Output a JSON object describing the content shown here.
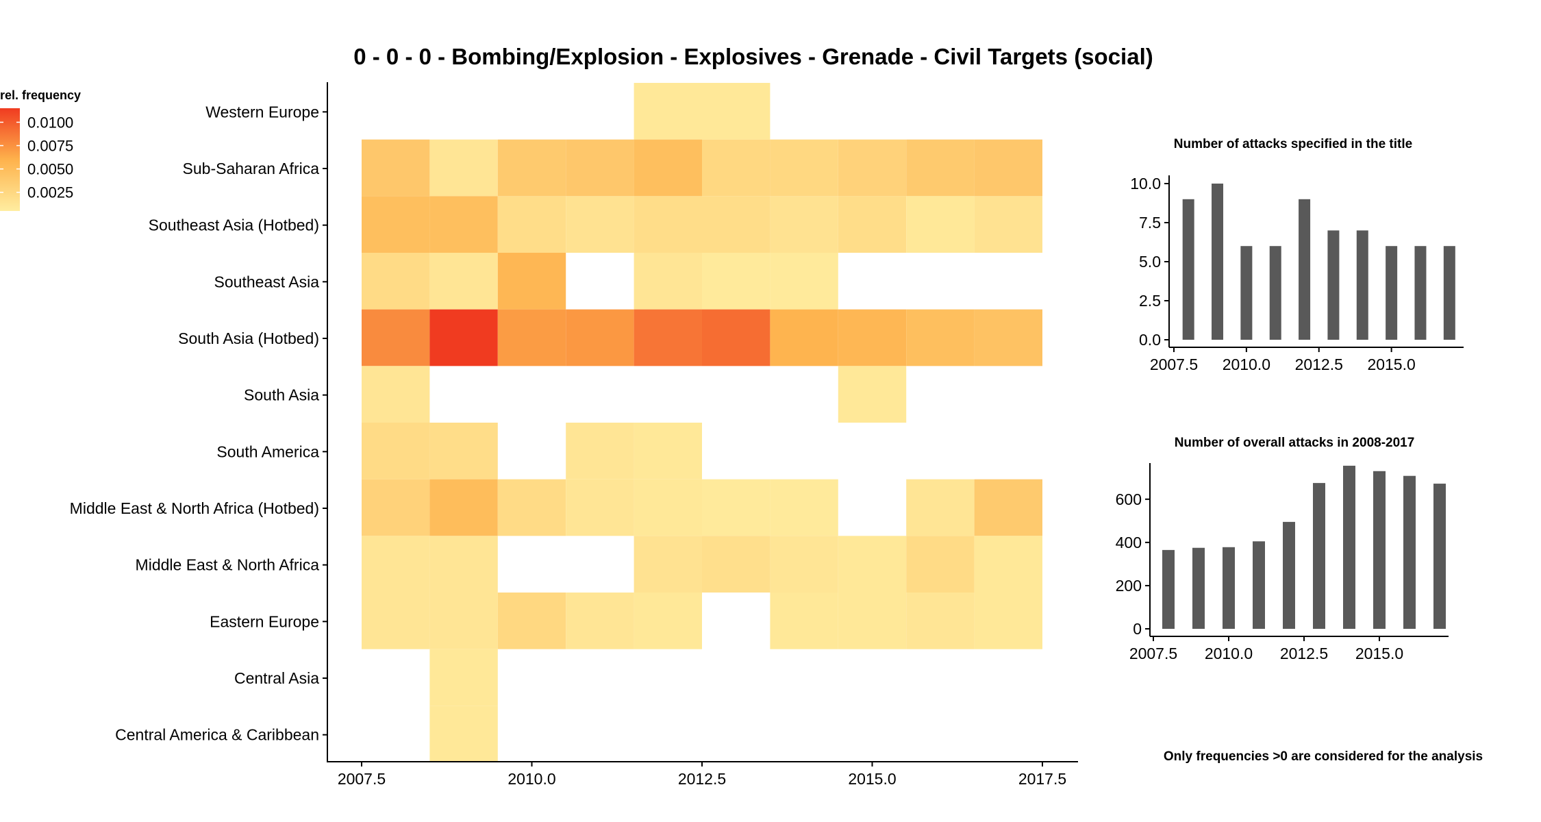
{
  "chart_data": [
    {
      "type": "heatmap",
      "title": "0 - 0 - 0 - Bombing/Explosion - Explosives - Grenade - Civil Targets (social)",
      "xlabel": "",
      "ylabel": "",
      "x_ticks": [
        "2007.5",
        "2010.0",
        "2012.5",
        "2015.0",
        "2017.5"
      ],
      "xlim": [
        2007.5,
        2017.5
      ],
      "x": [
        2008,
        2009,
        2010,
        2011,
        2012,
        2013,
        2014,
        2015,
        2016,
        2017
      ],
      "categories": [
        "Western Europe",
        "Sub-Saharan Africa",
        "Southeast Asia (Hotbed)",
        "Southeast Asia",
        "South Asia (Hotbed)",
        "South Asia",
        "South America",
        "Middle East & North Africa (Hotbed)",
        "Middle East & North Africa",
        "Eastern Europe",
        "Central Asia",
        "Central America & Caribbean"
      ],
      "legend": {
        "title": "rel. frequency",
        "ticks": [
          "0.0100",
          "0.0075",
          "0.0050",
          "0.0025"
        ],
        "tick_values": [
          0.01,
          0.0075,
          0.005,
          0.0025
        ],
        "range": [
          0.0005,
          0.0115
        ],
        "color_low": "#ffeda0",
        "color_mid": "#feb24c",
        "color_high": "#f03b20",
        "placement": "left"
      },
      "values": [
        [
          null,
          null,
          null,
          null,
          0.001,
          0.001,
          null,
          null,
          null,
          null
        ],
        [
          0.004,
          0.0012,
          0.0038,
          0.004,
          0.0048,
          0.0025,
          0.0025,
          0.003,
          0.0038,
          0.004
        ],
        [
          0.0048,
          0.0048,
          0.002,
          0.0015,
          0.002,
          0.002,
          0.0015,
          0.002,
          0.001,
          0.0015
        ],
        [
          0.0022,
          0.0012,
          0.0055,
          null,
          0.0012,
          0.0008,
          0.0008,
          null,
          null,
          null
        ],
        [
          0.0078,
          0.0115,
          0.007,
          0.0072,
          0.0088,
          0.0092,
          0.0058,
          0.0055,
          0.0048,
          0.0045
        ],
        [
          0.0012,
          null,
          null,
          null,
          null,
          null,
          null,
          0.001,
          null,
          null
        ],
        [
          0.0022,
          0.002,
          null,
          0.0012,
          0.001,
          null,
          null,
          null,
          null,
          null
        ],
        [
          0.003,
          0.005,
          0.0022,
          0.0012,
          0.001,
          0.0008,
          0.0008,
          null,
          0.0012,
          0.0038
        ],
        [
          0.0012,
          0.0012,
          null,
          null,
          0.0015,
          0.0018,
          0.0012,
          0.001,
          0.0022,
          0.001
        ],
        [
          0.0012,
          0.0012,
          0.0025,
          0.0012,
          0.001,
          null,
          0.001,
          0.001,
          0.0012,
          0.001
        ],
        [
          null,
          0.001,
          null,
          null,
          null,
          null,
          null,
          null,
          null,
          null
        ],
        [
          null,
          0.001,
          null,
          null,
          null,
          null,
          null,
          null,
          null,
          null
        ]
      ],
      "grid": false,
      "background": "#ffffff"
    },
    {
      "type": "bar",
      "title": "Number of attacks specified in the title",
      "x": [
        2008,
        2009,
        2010,
        2011,
        2012,
        2013,
        2014,
        2015,
        2016,
        2017
      ],
      "values": [
        9,
        10,
        6,
        6,
        9,
        7,
        7,
        6,
        6,
        6
      ],
      "x_ticks": [
        "2007.5",
        "2010.0",
        "2012.5",
        "2015.0"
      ],
      "y_ticks": [
        "0.0",
        "2.5",
        "5.0",
        "7.5",
        "10.0"
      ],
      "xlim": [
        2007.5,
        2017.5
      ],
      "ylim": [
        0,
        10
      ],
      "bar_color": "#595959",
      "grid": false
    },
    {
      "type": "bar",
      "title": "Number of overall attacks in 2008-2017",
      "x": [
        2008,
        2009,
        2010,
        2011,
        2012,
        2013,
        2014,
        2015,
        2016,
        2017
      ],
      "values": [
        365,
        375,
        378,
        405,
        495,
        675,
        755,
        730,
        708,
        672
      ],
      "x_ticks": [
        "2007.5",
        "2010.0",
        "2012.5",
        "2015.0"
      ],
      "y_ticks": [
        "0",
        "200",
        "400",
        "600"
      ],
      "xlim": [
        2007.5,
        2017.5
      ],
      "ylim": [
        0,
        780
      ],
      "bar_color": "#595959",
      "grid": false
    }
  ],
  "note": "Only frequencies >0 are considered for the analysis"
}
